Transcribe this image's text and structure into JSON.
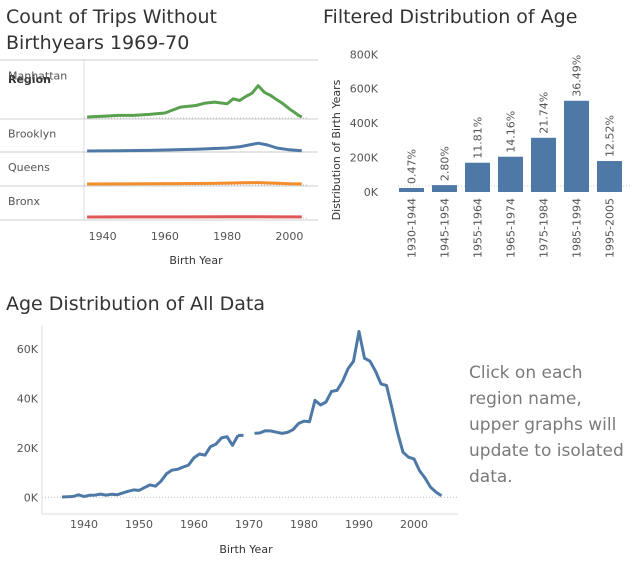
{
  "titles": {
    "region_chart": "Count of Trips Without Birthyears 1969-70",
    "age_chart": "Filtered Distribution of Age",
    "all_chart": "Age Distribution of All Data"
  },
  "note": "Click on each region name, upper graphs will update to isolated data.",
  "colors": {
    "Manhattan": "#59a14f",
    "Brooklyn": "#4e79a7",
    "Queens": "#f28e2b",
    "Bronx": "#e15759",
    "bar": "#4e79a7",
    "line": "#4e79a7"
  },
  "chart_data": [
    {
      "type": "line",
      "title": "Count of Trips Without Birthyears 1969-70",
      "row_header": "Region",
      "xlabel": "Birth Year",
      "xlim": [
        1934,
        2006
      ],
      "xticks": [
        1940,
        1960,
        1980,
        2000
      ],
      "series": [
        {
          "name": "Manhattan",
          "x": [
            1935,
            1940,
            1945,
            1950,
            1955,
            1960,
            1965,
            1970,
            1973,
            1976,
            1980,
            1982,
            1984,
            1986,
            1988,
            1990,
            1992,
            1994,
            1996,
            1998,
            2000,
            2003,
            2004
          ],
          "y": [
            0,
            0.02,
            0.05,
            0.05,
            0.08,
            0.12,
            0.3,
            0.35,
            0.42,
            0.45,
            0.4,
            0.55,
            0.5,
            0.62,
            0.72,
            0.95,
            0.75,
            0.65,
            0.52,
            0.4,
            0.25,
            0.05,
            0.0
          ]
        },
        {
          "name": "Brooklyn",
          "x": [
            1935,
            1945,
            1955,
            1965,
            1970,
            1975,
            1980,
            1984,
            1987,
            1990,
            1993,
            1996,
            2000,
            2004
          ],
          "y": [
            0,
            0.02,
            0.05,
            0.12,
            0.15,
            0.2,
            0.25,
            0.35,
            0.5,
            0.65,
            0.5,
            0.25,
            0.1,
            0.02
          ]
        },
        {
          "name": "Queens",
          "x": [
            1935,
            1945,
            1955,
            1965,
            1975,
            1980,
            1985,
            1990,
            1995,
            2000,
            2004
          ],
          "y": [
            0,
            0.01,
            0.02,
            0.04,
            0.06,
            0.09,
            0.12,
            0.14,
            0.09,
            0.03,
            0.01
          ]
        },
        {
          "name": "Bronx",
          "x": [
            1935,
            1950,
            1965,
            1980,
            1990,
            2000,
            2004
          ],
          "y": [
            0,
            0.01,
            0.02,
            0.03,
            0.04,
            0.02,
            0.01
          ]
        }
      ]
    },
    {
      "type": "bar",
      "title": "Filtered Distribution of Age",
      "ylabel": "Distribution of Birth Years",
      "categories": [
        "1930-1944",
        "1945-1954",
        "1955-1964",
        "1965-1974",
        "1975-1984",
        "1985-1994",
        "1995-2005"
      ],
      "values": [
        6800,
        40000,
        170000,
        205000,
        315000,
        530000,
        180000
      ],
      "labels": [
        "0.47%",
        "2.80%",
        "11.81%",
        "14.16%",
        "21.74%",
        "36.49%",
        "12.52%"
      ],
      "ylim": [
        0,
        860000
      ],
      "yticks": [
        0,
        200000,
        400000,
        600000,
        800000
      ],
      "ytick_labels": [
        "0K",
        "200K",
        "400K",
        "600K",
        "800K"
      ]
    },
    {
      "type": "line",
      "title": "Age Distribution of All Data",
      "xlabel": "Birth Year",
      "xlim": [
        1932,
        2008
      ],
      "ylim": [
        -1500,
        68000
      ],
      "xticks": [
        1940,
        1950,
        1960,
        1970,
        1980,
        1990,
        2000
      ],
      "yticks": [
        0,
        20000,
        40000,
        60000
      ],
      "ytick_labels": [
        "0K",
        "20K",
        "40K",
        "60K"
      ],
      "segments": [
        {
          "x": [
            1936,
            1937,
            1938,
            1939,
            1940,
            1941,
            1942,
            1943,
            1944,
            1945,
            1946,
            1947,
            1948,
            1949,
            1950,
            1951,
            1952,
            1953,
            1954,
            1955,
            1956,
            1957,
            1958,
            1959,
            1960,
            1961,
            1962,
            1963,
            1964,
            1965,
            1966,
            1967,
            1968
          ],
          "y": [
            100,
            200,
            300,
            1000,
            300,
            800,
            900,
            1300,
            900,
            1200,
            1000,
            1700,
            2400,
            3000,
            2800,
            3900,
            5000,
            4500,
            6500,
            9500,
            11000,
            11300,
            12200,
            13000,
            16000,
            17500,
            17000,
            20500,
            21500,
            24000,
            24500,
            21000,
            25000
          ]
        },
        {
          "x": [
            1968,
            1969,
            1970
          ],
          "y": [
            25000,
            25000,
            null
          ]
        },
        {
          "x": [
            1971,
            1972,
            1973,
            1974,
            1975,
            1976,
            1977,
            1978,
            1979,
            1980,
            1981,
            1982,
            1983,
            1984,
            1985,
            1986,
            1987,
            1988,
            1989,
            1990,
            1991,
            1992,
            1993,
            1994,
            1995,
            1996,
            1997,
            1998,
            1999,
            2000,
            2001,
            2002,
            2003,
            2004,
            2005
          ],
          "y": [
            25800,
            26000,
            26900,
            26800,
            26300,
            25800,
            26200,
            27300,
            29800,
            30800,
            30500,
            39200,
            37300,
            38500,
            42800,
            43200,
            46800,
            51900,
            55000,
            67000,
            56200,
            55000,
            51000,
            45800,
            45200,
            36000,
            26200,
            18200,
            16200,
            15500,
            10800,
            7800,
            4100,
            2100,
            600
          ]
        }
      ]
    }
  ]
}
